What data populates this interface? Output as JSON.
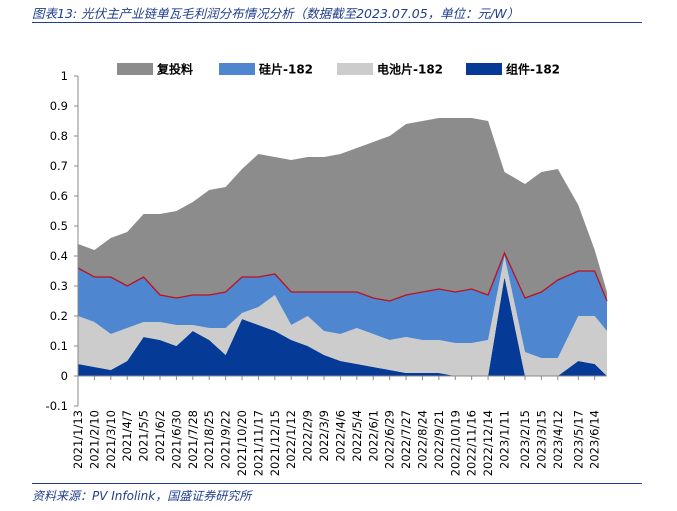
{
  "title": "图表13:  光伏主产业链单瓦毛利润分布情况分析（数据截至2023.07.05，单位：元/W）",
  "source": "资料来源：PV Infolink，国盛证券研究所",
  "colors": {
    "series_1": "#8c8c8c",
    "series_2": "#4f86d0",
    "series_3": "#cccccc",
    "series_4": "#063a97",
    "top_line": "#c0101e",
    "accent_text": "#1f3e8c"
  },
  "chart_data": {
    "type": "area",
    "stacking": "stacked",
    "legend_position": "top",
    "grid": false,
    "ylim": [
      -0.1,
      1
    ],
    "yticks": [
      -0.1,
      0,
      0.1,
      0.2,
      0.3,
      0.4,
      0.5,
      0.6,
      0.7,
      0.8,
      0.9,
      1
    ],
    "ytick_labels": [
      "-0.1",
      "0",
      "0.1",
      "0.2",
      "0.3",
      "0.4",
      "0.5",
      "0.6",
      "0.7",
      "0.8",
      "0.9",
      "1"
    ],
    "x_tick_labels": [
      "2021/1/13",
      "2021/2/10",
      "2021/3/10",
      "2021/4/7",
      "2021/5/5",
      "2021/6/2",
      "2021/6/30",
      "2021/7/28",
      "2021/8/25",
      "2021/9/22",
      "2021/10/20",
      "2021/11/17",
      "2021/12/15",
      "2022/1/12",
      "2022/2/9",
      "2022/3/9",
      "2022/4/6",
      "2022/5/4",
      "2022/6/1",
      "2022/6/29",
      "2022/7/27",
      "2022/8/24",
      "2022/9/21",
      "2022/10/19",
      "2022/11/16",
      "2022/12/14",
      "2023/1/11",
      "2023/2/15",
      "2023/3/15",
      "2023/4/12",
      "2023/5/17",
      "2023/6/14"
    ],
    "x_first": "2021/1/13",
    "x_last": "2023/7/5",
    "x": [
      "2021/1/13",
      "2021/2/10",
      "2021/3/10",
      "2021/4/7",
      "2021/5/5",
      "2021/6/2",
      "2021/6/30",
      "2021/7/28",
      "2021/8/25",
      "2021/9/22",
      "2021/10/20",
      "2021/11/17",
      "2021/12/15",
      "2022/1/12",
      "2022/2/9",
      "2022/3/9",
      "2022/4/6",
      "2022/5/4",
      "2022/6/1",
      "2022/6/29",
      "2022/7/27",
      "2022/8/24",
      "2022/9/21",
      "2022/10/19",
      "2022/11/16",
      "2022/12/14",
      "2023/1/11",
      "2023/2/15",
      "2023/3/15",
      "2023/4/12",
      "2023/5/17",
      "2023/6/14",
      "2023/7/5"
    ],
    "series": [
      {
        "name": "组件-182",
        "values": [
          0.04,
          0.03,
          0.02,
          0.05,
          0.13,
          0.12,
          0.1,
          0.15,
          0.12,
          0.07,
          0.19,
          0.17,
          0.15,
          0.12,
          0.1,
          0.07,
          0.05,
          0.04,
          0.03,
          0.02,
          0.01,
          0.01,
          0.01,
          0.0,
          0.0,
          0.0,
          0.33,
          0.0,
          0.0,
          0.0,
          0.05,
          0.04,
          0.0
        ]
      },
      {
        "name": "电池片-182",
        "values": [
          0.16,
          0.15,
          0.12,
          0.11,
          0.05,
          0.06,
          0.07,
          0.02,
          0.04,
          0.09,
          0.02,
          0.06,
          0.12,
          0.05,
          0.1,
          0.08,
          0.09,
          0.12,
          0.11,
          0.1,
          0.12,
          0.11,
          0.11,
          0.11,
          0.11,
          0.12,
          0.07,
          0.08,
          0.06,
          0.06,
          0.15,
          0.16,
          0.15
        ]
      },
      {
        "name": "硅片-182",
        "values": [
          0.16,
          0.15,
          0.19,
          0.14,
          0.15,
          0.09,
          0.09,
          0.1,
          0.11,
          0.12,
          0.12,
          0.1,
          0.07,
          0.11,
          0.08,
          0.13,
          0.14,
          0.12,
          0.12,
          0.13,
          0.14,
          0.16,
          0.17,
          0.17,
          0.18,
          0.15,
          0.01,
          0.18,
          0.22,
          0.26,
          0.15,
          0.15,
          0.1
        ]
      },
      {
        "name": "复投料",
        "values": [
          0.08,
          0.09,
          0.13,
          0.18,
          0.21,
          0.27,
          0.29,
          0.31,
          0.35,
          0.35,
          0.36,
          0.41,
          0.39,
          0.44,
          0.45,
          0.45,
          0.46,
          0.48,
          0.52,
          0.55,
          0.57,
          0.57,
          0.57,
          0.58,
          0.57,
          0.58,
          0.27,
          0.38,
          0.4,
          0.37,
          0.22,
          0.07,
          0.03
        ]
      }
    ]
  }
}
